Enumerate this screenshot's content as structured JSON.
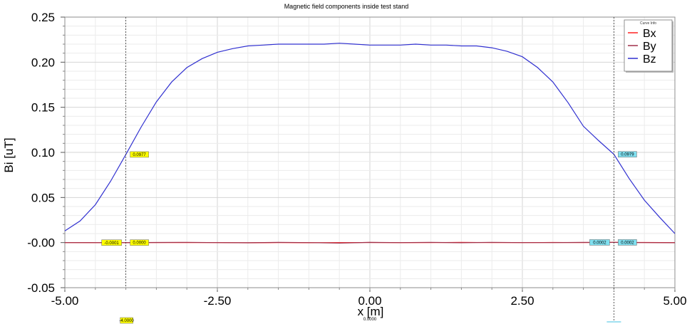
{
  "chart_data": {
    "type": "line",
    "title": "Magnetic field components inside test stand",
    "xlabel": "x [m]",
    "ylabel": "Bi [uT]",
    "xlim": [
      -5.0,
      5.0
    ],
    "ylim": [
      -0.05,
      0.25
    ],
    "x_ticks": [
      "-5.00",
      "-2.50",
      "0.00",
      "2.50",
      "5.00"
    ],
    "y_ticks": [
      "-0.05",
      "-0.00",
      "0.05",
      "0.10",
      "0.15",
      "0.20",
      "0.25"
    ],
    "grid": true,
    "legend": {
      "title": "Curve Info",
      "placement": "top-right"
    },
    "series": [
      {
        "name": "Bx",
        "color": "#ff2020",
        "x": [
          -5.0,
          -4.5,
          -4.0,
          -3.5,
          -3.0,
          -2.5,
          -2.0,
          -1.5,
          -1.0,
          -0.5,
          0.0,
          0.5,
          1.0,
          1.5,
          2.0,
          2.5,
          3.0,
          3.5,
          4.0,
          4.5,
          5.0
        ],
        "y": [
          0.0,
          -0.0001,
          -0.0001,
          0.0,
          0.0,
          0.0,
          -0.0003,
          0.0,
          -0.0002,
          0.0,
          0.0001,
          -0.0001,
          0.0,
          0.0002,
          0.0,
          0.0,
          0.0001,
          0.0,
          0.0002,
          0.0001,
          0.0
        ]
      },
      {
        "name": "By",
        "color": "#a0304a",
        "x": [
          -5.0,
          -4.5,
          -4.0,
          -3.5,
          -3.0,
          -2.5,
          -2.0,
          -1.5,
          -1.0,
          -0.5,
          0.0,
          0.5,
          1.0,
          1.5,
          2.0,
          2.5,
          3.0,
          3.5,
          4.0,
          4.5,
          5.0
        ],
        "y": [
          0.0,
          0.0,
          0.0,
          0.0001,
          0.0003,
          0.0,
          -0.0002,
          0.0003,
          0.0,
          -0.0006,
          0.0002,
          0.0,
          0.0003,
          -0.0002,
          0.0003,
          0.0,
          0.0,
          0.0002,
          0.0002,
          0.0,
          -0.0002
        ]
      },
      {
        "name": "Bz",
        "color": "#3030d0",
        "x": [
          -5.0,
          -4.75,
          -4.5,
          -4.25,
          -4.0,
          -3.75,
          -3.5,
          -3.25,
          -3.0,
          -2.75,
          -2.5,
          -2.25,
          -2.0,
          -1.75,
          -1.5,
          -1.25,
          -1.0,
          -0.75,
          -0.5,
          -0.25,
          0.0,
          0.25,
          0.5,
          0.75,
          1.0,
          1.25,
          1.5,
          1.75,
          2.0,
          2.25,
          2.5,
          2.75,
          3.0,
          3.25,
          3.5,
          3.75,
          4.0,
          4.25,
          4.5,
          4.75,
          5.0
        ],
        "y": [
          0.013,
          0.024,
          0.042,
          0.068,
          0.0977,
          0.128,
          0.156,
          0.178,
          0.194,
          0.204,
          0.211,
          0.215,
          0.218,
          0.219,
          0.22,
          0.22,
          0.22,
          0.22,
          0.221,
          0.22,
          0.219,
          0.219,
          0.219,
          0.22,
          0.219,
          0.219,
          0.218,
          0.218,
          0.216,
          0.212,
          0.206,
          0.194,
          0.178,
          0.155,
          0.129,
          0.113,
          0.0979,
          0.071,
          0.047,
          0.028,
          0.01
        ]
      }
    ],
    "cursors": [
      {
        "x": -4.0,
        "x_label": "-4.0000",
        "color": "#ffff00",
        "readouts": [
          {
            "value": 0.0977,
            "label": "0.0977"
          },
          {
            "value": -0.0001,
            "label": "-0.0001"
          },
          {
            "value": 0.0,
            "label": "0.0000"
          }
        ]
      },
      {
        "x": 4.0,
        "x_label": "",
        "color": "#80e0f0",
        "readouts": [
          {
            "value": 0.0979,
            "label": "0.0979"
          },
          {
            "value": 0.0002,
            "label": "0.0002"
          },
          {
            "value": 0.0002,
            "label": "0.0002"
          }
        ]
      }
    ],
    "center_label": "0.0000"
  }
}
